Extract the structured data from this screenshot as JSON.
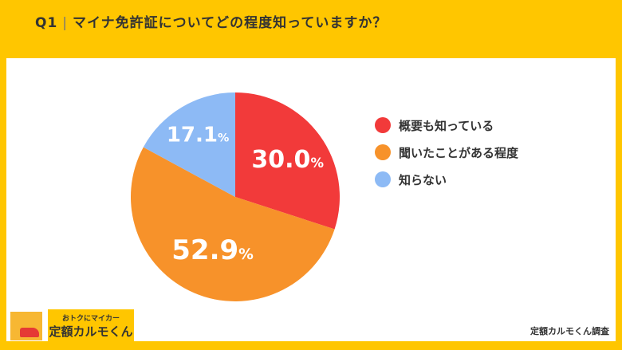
{
  "header": {
    "q": "Q1",
    "separator": "|",
    "question": "マイナ免許証についてどの程度知っていますか？"
  },
  "chart_data": {
    "type": "pie",
    "title": "マイナ免許証についてどの程度知っていますか？",
    "categories": [
      "概要も知っている",
      "聞いたことがある程度",
      "知らない"
    ],
    "values": [
      30.0,
      52.9,
      17.1
    ],
    "labels": [
      "30.0",
      "52.9",
      "17.1"
    ],
    "unit": "%",
    "colors": [
      "#f23a3a",
      "#f7922a",
      "#8dbaf5"
    ],
    "start": "top",
    "direction": "clockwise",
    "legend": "right"
  },
  "source": "定額カルモくん調査",
  "logo": {
    "line1": "おトクにマイカー",
    "line2": "定額カルモくん"
  }
}
